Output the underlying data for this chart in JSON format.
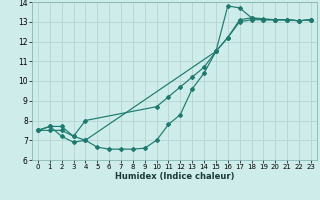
{
  "xlabel": "Humidex (Indice chaleur)",
  "bg_color": "#ceecea",
  "grid_color": "#b8d8d6",
  "line_color": "#1e7a6e",
  "xlim": [
    -0.5,
    23.5
  ],
  "ylim": [
    6,
    14
  ],
  "xticks": [
    0,
    1,
    2,
    3,
    4,
    5,
    6,
    7,
    8,
    9,
    10,
    11,
    12,
    13,
    14,
    15,
    16,
    17,
    18,
    19,
    20,
    21,
    22,
    23
  ],
  "yticks": [
    6,
    7,
    8,
    9,
    10,
    11,
    12,
    13,
    14
  ],
  "line1_x": [
    0,
    1,
    2,
    3,
    4,
    5,
    6,
    7,
    8,
    9,
    10,
    11,
    12,
    13,
    14,
    15,
    16,
    17,
    18,
    19,
    20,
    21,
    22,
    23
  ],
  "line1_y": [
    7.5,
    7.7,
    7.2,
    6.9,
    7.0,
    6.65,
    6.55,
    6.55,
    6.55,
    6.6,
    7.0,
    7.8,
    8.3,
    9.6,
    10.4,
    11.5,
    13.8,
    13.7,
    13.2,
    13.1,
    13.1,
    13.1,
    13.05,
    13.1
  ],
  "line2_x": [
    0,
    1,
    2,
    3,
    4,
    10,
    11,
    12,
    13,
    14,
    15,
    16,
    17,
    18,
    19,
    20,
    21,
    22,
    23
  ],
  "line2_y": [
    7.5,
    7.7,
    7.7,
    7.2,
    8.0,
    8.7,
    9.2,
    9.7,
    10.2,
    10.7,
    11.5,
    12.2,
    13.1,
    13.2,
    13.15,
    13.1,
    13.1,
    13.05,
    13.1
  ],
  "line3_x": [
    0,
    1,
    2,
    3,
    4,
    15,
    16,
    17,
    18,
    19,
    20,
    21,
    22,
    23
  ],
  "line3_y": [
    7.5,
    7.5,
    7.5,
    7.2,
    7.0,
    11.5,
    12.2,
    13.0,
    13.1,
    13.1,
    13.1,
    13.1,
    13.05,
    13.1
  ]
}
